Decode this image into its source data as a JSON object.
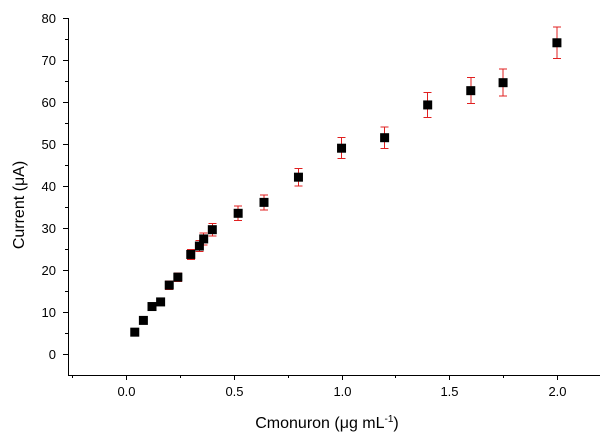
{
  "chart_data": {
    "type": "scatter",
    "title": "",
    "xlabel": "Cmonuron (μg mL",
    "xlabel_sup": "-1",
    "xlabel_close": ")",
    "ylabel": "Current (μA)",
    "xlim": [
      -0.27,
      2.2
    ],
    "ylim": [
      -5,
      80
    ],
    "xticks": [
      "0.0",
      "0.5",
      "1.0",
      "1.5",
      "2.0"
    ],
    "yticks": [
      "0",
      "10",
      "20",
      "30",
      "40",
      "50",
      "60",
      "70",
      "80"
    ],
    "grid": false,
    "marker_color": "#000000",
    "error_bar_color": "#e02020",
    "series": [
      {
        "points": [
          {
            "x": 0.04,
            "y": 5.2,
            "err": 0.8
          },
          {
            "x": 0.08,
            "y": 8.0,
            "err": 0.8
          },
          {
            "x": 0.12,
            "y": 11.3,
            "err": 0.9
          },
          {
            "x": 0.16,
            "y": 12.4,
            "err": 0.9
          },
          {
            "x": 0.2,
            "y": 16.4,
            "err": 1.0
          },
          {
            "x": 0.24,
            "y": 18.3,
            "err": 1.0
          },
          {
            "x": 0.3,
            "y": 23.7,
            "err": 1.2
          },
          {
            "x": 0.34,
            "y": 25.7,
            "err": 1.3
          },
          {
            "x": 0.36,
            "y": 27.4,
            "err": 1.4
          },
          {
            "x": 0.4,
            "y": 29.6,
            "err": 1.5
          },
          {
            "x": 0.52,
            "y": 33.5,
            "err": 1.7
          },
          {
            "x": 0.64,
            "y": 36.1,
            "err": 1.8
          },
          {
            "x": 0.8,
            "y": 42.1,
            "err": 2.1
          },
          {
            "x": 1.0,
            "y": 49.0,
            "err": 2.5
          },
          {
            "x": 1.2,
            "y": 51.5,
            "err": 2.6
          },
          {
            "x": 1.4,
            "y": 59.3,
            "err": 3.0
          },
          {
            "x": 1.6,
            "y": 62.7,
            "err": 3.1
          },
          {
            "x": 1.75,
            "y": 64.6,
            "err": 3.2
          },
          {
            "x": 2.0,
            "y": 74.1,
            "err": 3.7
          }
        ]
      }
    ]
  }
}
